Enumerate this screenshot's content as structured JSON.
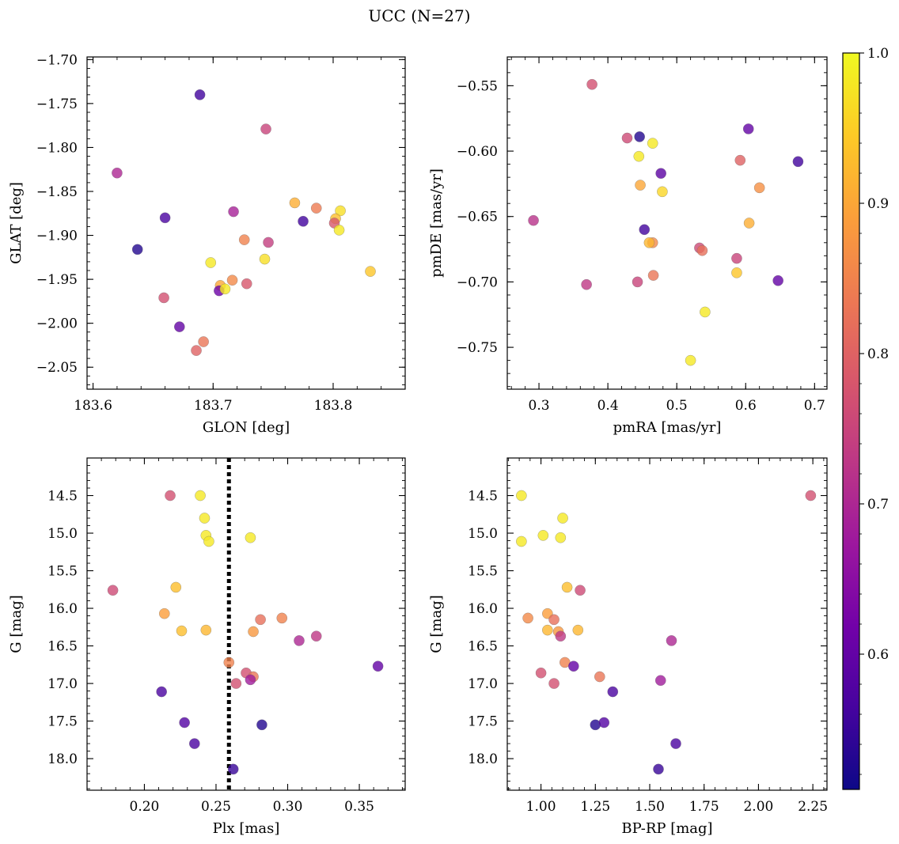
{
  "title": "UCC (N=27)",
  "colorbar": {
    "colormap": "plasma",
    "vmin": 0.51,
    "vmax": 1.0,
    "ticks": [
      0.6,
      0.7,
      0.8,
      0.9,
      1.0
    ],
    "tick_labels": [
      "0.6",
      "0.7",
      "0.8",
      "0.9",
      "1.0"
    ],
    "stops": [
      "#0d0887",
      "#46039f",
      "#7201a8",
      "#9c179e",
      "#bd3786",
      "#d8576b",
      "#ed7953",
      "#fb9f3a",
      "#fdca26",
      "#f0f921"
    ],
    "point_alpha": 0.8
  },
  "chart_data": [
    {
      "type": "scatter",
      "id": "glon-glat",
      "xlabel": "GLON [deg]",
      "ylabel": "GLAT [deg]",
      "xlim": [
        183.595,
        183.86
      ],
      "ylim": [
        -2.075,
        -1.697
      ],
      "y_inverted": false,
      "xticks": [
        183.6,
        183.7,
        183.8
      ],
      "xtick_labels": [
        "183.6",
        "183.7",
        "183.8"
      ],
      "x_minor_step": 0.02,
      "yticks": [
        -2.05,
        -2.0,
        -1.95,
        -1.9,
        -1.85,
        -1.8,
        -1.75,
        -1.7
      ],
      "ytick_labels": [
        "−2.05",
        "−2.00",
        "−1.95",
        "−1.90",
        "−1.85",
        "−1.80",
        "−1.75",
        "−1.70"
      ],
      "y_minor_step": 0.01,
      "points": [
        {
          "x": 183.689,
          "y": -1.74,
          "c": 0.56
        },
        {
          "x": 183.744,
          "y": -1.779,
          "c": 0.75
        },
        {
          "x": 183.62,
          "y": -1.829,
          "c": 0.7
        },
        {
          "x": 183.66,
          "y": -1.88,
          "c": 0.57
        },
        {
          "x": 183.717,
          "y": -1.873,
          "c": 0.69
        },
        {
          "x": 183.768,
          "y": -1.863,
          "c": 0.91
        },
        {
          "x": 183.786,
          "y": -1.869,
          "c": 0.84
        },
        {
          "x": 183.775,
          "y": -1.884,
          "c": 0.56
        },
        {
          "x": 183.806,
          "y": -1.872,
          "c": 0.97
        },
        {
          "x": 183.802,
          "y": -1.881,
          "c": 0.93
        },
        {
          "x": 183.801,
          "y": -1.886,
          "c": 0.78
        },
        {
          "x": 183.805,
          "y": -1.894,
          "c": 0.98
        },
        {
          "x": 183.637,
          "y": -1.916,
          "c": 0.53
        },
        {
          "x": 183.726,
          "y": -1.905,
          "c": 0.85
        },
        {
          "x": 183.746,
          "y": -1.908,
          "c": 0.74
        },
        {
          "x": 183.698,
          "y": -1.931,
          "c": 0.98
        },
        {
          "x": 183.743,
          "y": -1.927,
          "c": 0.97
        },
        {
          "x": 183.831,
          "y": -1.941,
          "c": 0.94
        },
        {
          "x": 183.716,
          "y": -1.951,
          "c": 0.86
        },
        {
          "x": 183.706,
          "y": -1.957,
          "c": 0.9
        },
        {
          "x": 183.728,
          "y": -1.955,
          "c": 0.78
        },
        {
          "x": 183.705,
          "y": -1.963,
          "c": 0.61
        },
        {
          "x": 183.71,
          "y": -1.961,
          "c": 0.98
        },
        {
          "x": 183.659,
          "y": -1.971,
          "c": 0.77
        },
        {
          "x": 183.672,
          "y": -2.004,
          "c": 0.6
        },
        {
          "x": 183.692,
          "y": -2.021,
          "c": 0.83
        },
        {
          "x": 183.686,
          "y": -2.031,
          "c": 0.8
        }
      ]
    },
    {
      "type": "scatter",
      "id": "pmra-pmde",
      "xlabel": "pmRA [mas/yr]",
      "ylabel": "pmDE [mas/yr]",
      "xlim": [
        0.254,
        0.718
      ],
      "ylim": [
        -0.782,
        -0.528
      ],
      "y_inverted": false,
      "xticks": [
        0.3,
        0.4,
        0.5,
        0.6,
        0.7
      ],
      "xtick_labels": [
        "0.3",
        "0.4",
        "0.5",
        "0.6",
        "0.7"
      ],
      "x_minor_step": 0.02,
      "yticks": [
        -0.75,
        -0.7,
        -0.65,
        -0.6,
        -0.55
      ],
      "ytick_labels": [
        "−0.75",
        "−0.70",
        "−0.65",
        "−0.60",
        "−0.55"
      ],
      "y_minor_step": 0.01,
      "points": [
        {
          "x": 0.377,
          "y": -0.549,
          "c": 0.77
        },
        {
          "x": 0.446,
          "y": -0.589,
          "c": 0.53
        },
        {
          "x": 0.428,
          "y": -0.59,
          "c": 0.76
        },
        {
          "x": 0.465,
          "y": -0.594,
          "c": 0.98
        },
        {
          "x": 0.604,
          "y": -0.583,
          "c": 0.6
        },
        {
          "x": 0.445,
          "y": -0.604,
          "c": 0.98
        },
        {
          "x": 0.592,
          "y": -0.607,
          "c": 0.8
        },
        {
          "x": 0.676,
          "y": -0.608,
          "c": 0.56
        },
        {
          "x": 0.477,
          "y": -0.617,
          "c": 0.59
        },
        {
          "x": 0.447,
          "y": -0.626,
          "c": 0.9
        },
        {
          "x": 0.62,
          "y": -0.628,
          "c": 0.87
        },
        {
          "x": 0.479,
          "y": -0.631,
          "c": 0.96
        },
        {
          "x": 0.292,
          "y": -0.653,
          "c": 0.72
        },
        {
          "x": 0.605,
          "y": -0.655,
          "c": 0.91
        },
        {
          "x": 0.453,
          "y": -0.66,
          "c": 0.56
        },
        {
          "x": 0.465,
          "y": -0.67,
          "c": 0.86
        },
        {
          "x": 0.46,
          "y": -0.67,
          "c": 0.92
        },
        {
          "x": 0.533,
          "y": -0.674,
          "c": 0.76
        },
        {
          "x": 0.537,
          "y": -0.676,
          "c": 0.82
        },
        {
          "x": 0.587,
          "y": -0.682,
          "c": 0.75
        },
        {
          "x": 0.587,
          "y": -0.693,
          "c": 0.94
        },
        {
          "x": 0.466,
          "y": -0.695,
          "c": 0.83
        },
        {
          "x": 0.647,
          "y": -0.699,
          "c": 0.6
        },
        {
          "x": 0.443,
          "y": -0.7,
          "c": 0.75
        },
        {
          "x": 0.369,
          "y": -0.702,
          "c": 0.73
        },
        {
          "x": 0.541,
          "y": -0.723,
          "c": 0.98
        },
        {
          "x": 0.52,
          "y": -0.76,
          "c": 0.98
        }
      ]
    },
    {
      "type": "scatter",
      "id": "plx-g",
      "xlabel": "Plx [mas]",
      "ylabel": "G [mag]",
      "xlim": [
        0.16,
        0.382
      ],
      "ylim": [
        14.0,
        18.42
      ],
      "y_inverted": true,
      "xticks": [
        0.2,
        0.25,
        0.3,
        0.35
      ],
      "xtick_labels": [
        "0.20",
        "0.25",
        "0.30",
        "0.35"
      ],
      "x_minor_step": 0.01,
      "yticks": [
        14.5,
        15.0,
        15.5,
        16.0,
        16.5,
        17.0,
        17.5,
        18.0
      ],
      "ytick_labels": [
        "14.5",
        "15.0",
        "15.5",
        "16.0",
        "16.5",
        "17.0",
        "17.5",
        "18.0"
      ],
      "y_minor_step": 0.1,
      "vline": {
        "x": 0.259,
        "style": "dotted"
      },
      "points": [
        {
          "x": 0.218,
          "y": 14.5,
          "c": 0.77
        },
        {
          "x": 0.239,
          "y": 14.5,
          "c": 0.98
        },
        {
          "x": 0.242,
          "y": 14.8,
          "c": 0.98
        },
        {
          "x": 0.243,
          "y": 15.03,
          "c": 0.98
        },
        {
          "x": 0.245,
          "y": 15.11,
          "c": 0.98
        },
        {
          "x": 0.274,
          "y": 15.06,
          "c": 0.98
        },
        {
          "x": 0.178,
          "y": 15.76,
          "c": 0.76
        },
        {
          "x": 0.222,
          "y": 15.72,
          "c": 0.93
        },
        {
          "x": 0.214,
          "y": 16.07,
          "c": 0.89
        },
        {
          "x": 0.226,
          "y": 16.3,
          "c": 0.93
        },
        {
          "x": 0.243,
          "y": 16.29,
          "c": 0.92
        },
        {
          "x": 0.281,
          "y": 16.15,
          "c": 0.82
        },
        {
          "x": 0.296,
          "y": 16.13,
          "c": 0.85
        },
        {
          "x": 0.276,
          "y": 16.31,
          "c": 0.88
        },
        {
          "x": 0.32,
          "y": 16.37,
          "c": 0.73
        },
        {
          "x": 0.308,
          "y": 16.43,
          "c": 0.7
        },
        {
          "x": 0.363,
          "y": 16.77,
          "c": 0.6
        },
        {
          "x": 0.259,
          "y": 16.72,
          "c": 0.85
        },
        {
          "x": 0.271,
          "y": 16.86,
          "c": 0.77
        },
        {
          "x": 0.276,
          "y": 16.91,
          "c": 0.83
        },
        {
          "x": 0.274,
          "y": 16.95,
          "c": 0.68
        },
        {
          "x": 0.264,
          "y": 17.0,
          "c": 0.77
        },
        {
          "x": 0.212,
          "y": 17.11,
          "c": 0.57
        },
        {
          "x": 0.228,
          "y": 17.52,
          "c": 0.58
        },
        {
          "x": 0.282,
          "y": 17.55,
          "c": 0.53
        },
        {
          "x": 0.235,
          "y": 17.8,
          "c": 0.57
        },
        {
          "x": 0.262,
          "y": 18.14,
          "c": 0.55
        }
      ]
    },
    {
      "type": "scatter",
      "id": "bprp-g",
      "xlabel": "BP-RP [mag]",
      "ylabel": "G [mag]",
      "xlim": [
        0.845,
        2.315
      ],
      "ylim": [
        14.0,
        18.42
      ],
      "y_inverted": true,
      "xticks": [
        1.0,
        1.25,
        1.5,
        1.75,
        2.0,
        2.25
      ],
      "xtick_labels": [
        "1.00",
        "1.25",
        "1.50",
        "1.75",
        "2.00",
        "2.25"
      ],
      "x_minor_step": 0.05,
      "yticks": [
        14.5,
        15.0,
        15.5,
        16.0,
        16.5,
        17.0,
        17.5,
        18.0
      ],
      "ytick_labels": [
        "14.5",
        "15.0",
        "15.5",
        "16.0",
        "16.5",
        "17.0",
        "17.5",
        "18.0"
      ],
      "y_minor_step": 0.1,
      "points": [
        {
          "x": 0.91,
          "y": 14.5,
          "c": 0.98
        },
        {
          "x": 2.24,
          "y": 14.5,
          "c": 0.77
        },
        {
          "x": 1.1,
          "y": 14.8,
          "c": 0.98
        },
        {
          "x": 1.01,
          "y": 15.03,
          "c": 0.98
        },
        {
          "x": 0.91,
          "y": 15.11,
          "c": 0.98
        },
        {
          "x": 1.09,
          "y": 15.06,
          "c": 0.98
        },
        {
          "x": 1.12,
          "y": 15.72,
          "c": 0.93
        },
        {
          "x": 1.18,
          "y": 15.76,
          "c": 0.76
        },
        {
          "x": 0.94,
          "y": 16.13,
          "c": 0.86
        },
        {
          "x": 1.03,
          "y": 16.07,
          "c": 0.89
        },
        {
          "x": 1.06,
          "y": 16.15,
          "c": 0.82
        },
        {
          "x": 1.03,
          "y": 16.29,
          "c": 0.92
        },
        {
          "x": 1.08,
          "y": 16.31,
          "c": 0.88
        },
        {
          "x": 1.17,
          "y": 16.29,
          "c": 0.92
        },
        {
          "x": 1.09,
          "y": 16.37,
          "c": 0.73
        },
        {
          "x": 1.6,
          "y": 16.43,
          "c": 0.7
        },
        {
          "x": 1.11,
          "y": 16.72,
          "c": 0.85
        },
        {
          "x": 1.15,
          "y": 16.77,
          "c": 0.6
        },
        {
          "x": 1.0,
          "y": 16.86,
          "c": 0.77
        },
        {
          "x": 1.27,
          "y": 16.91,
          "c": 0.83
        },
        {
          "x": 1.55,
          "y": 16.96,
          "c": 0.68
        },
        {
          "x": 1.06,
          "y": 17.0,
          "c": 0.77
        },
        {
          "x": 1.33,
          "y": 17.11,
          "c": 0.57
        },
        {
          "x": 1.25,
          "y": 17.55,
          "c": 0.53
        },
        {
          "x": 1.29,
          "y": 17.52,
          "c": 0.58
        },
        {
          "x": 1.62,
          "y": 17.8,
          "c": 0.57
        },
        {
          "x": 1.54,
          "y": 18.14,
          "c": 0.55
        }
      ]
    }
  ]
}
